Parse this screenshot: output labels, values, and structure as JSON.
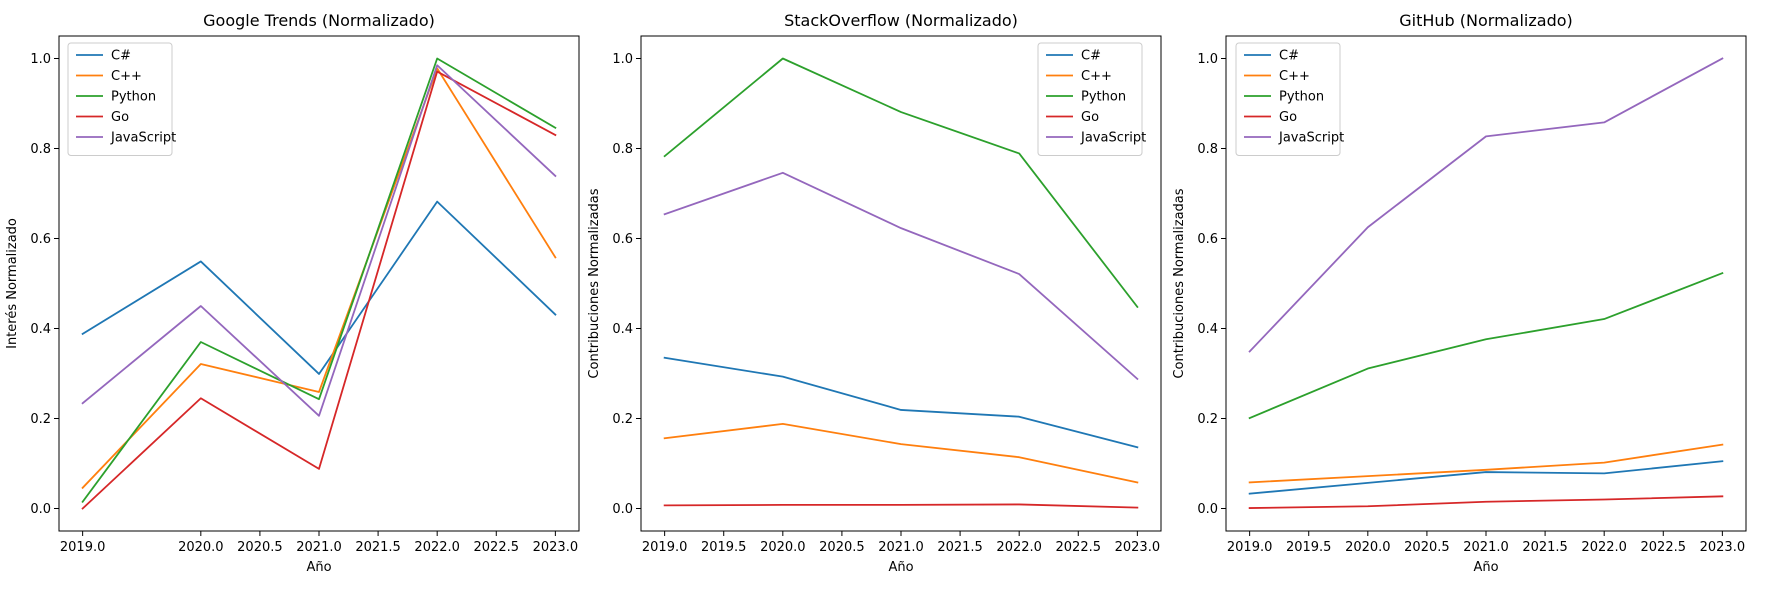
{
  "chart_data": [
    {
      "type": "line",
      "title": "Google Trends (Normalizado)",
      "xlabel": "Año",
      "ylabel": "Interés Normalizado",
      "x": [
        2019,
        2020,
        2021,
        2022,
        2023
      ],
      "xlim": [
        2018.8,
        2023.2
      ],
      "ylim": [
        -0.05,
        1.05
      ],
      "xticks": [
        "2019.0",
        "2020.0",
        "2020.5",
        "2021.0",
        "2021.5",
        "2022.0",
        "2022.5",
        "2023.0"
      ],
      "yticks": [
        "0.0",
        "0.2",
        "0.4",
        "0.6",
        "0.8",
        "1.0"
      ],
      "legend": "top-left",
      "grid": false,
      "series": [
        {
          "name": "C#",
          "color": "#1f77b4",
          "values": [
            0.388,
            0.549,
            0.299,
            0.682,
            0.431
          ]
        },
        {
          "name": "C++",
          "color": "#ff7f0e",
          "values": [
            0.046,
            0.321,
            0.259,
            0.978,
            0.558
          ]
        },
        {
          "name": "Python",
          "color": "#2ca02c",
          "values": [
            0.015,
            0.37,
            0.243,
            1.0,
            0.846
          ]
        },
        {
          "name": "Go",
          "color": "#d62728",
          "values": [
            0.0,
            0.245,
            0.088,
            0.971,
            0.83
          ]
        },
        {
          "name": "JavaScript",
          "color": "#9467bd",
          "values": [
            0.234,
            0.45,
            0.206,
            0.985,
            0.739
          ]
        }
      ]
    },
    {
      "type": "line",
      "title": "StackOverflow (Normalizado)",
      "xlabel": "Año",
      "ylabel": "Contribuciones Normalizadas",
      "x": [
        2019,
        2020,
        2021,
        2022,
        2023
      ],
      "xlim": [
        2018.8,
        2023.2
      ],
      "ylim": [
        -0.05,
        1.05
      ],
      "xticks": [
        "2019.0",
        "2019.5",
        "2020.0",
        "2020.5",
        "2021.0",
        "2021.5",
        "2022.0",
        "2022.5",
        "2023.0"
      ],
      "yticks": [
        "0.0",
        "0.2",
        "0.4",
        "0.6",
        "0.8",
        "1.0"
      ],
      "legend": "top-right",
      "grid": false,
      "series": [
        {
          "name": "C#",
          "color": "#1f77b4",
          "values": [
            0.335,
            0.293,
            0.219,
            0.204,
            0.136
          ]
        },
        {
          "name": "C++",
          "color": "#ff7f0e",
          "values": [
            0.156,
            0.188,
            0.143,
            0.114,
            0.058
          ]
        },
        {
          "name": "Python",
          "color": "#2ca02c",
          "values": [
            0.783,
            1.0,
            0.881,
            0.789,
            0.448
          ]
        },
        {
          "name": "Go",
          "color": "#d62728",
          "values": [
            0.007,
            0.008,
            0.008,
            0.009,
            0.002
          ]
        },
        {
          "name": "JavaScript",
          "color": "#9467bd",
          "values": [
            0.654,
            0.746,
            0.623,
            0.521,
            0.288
          ]
        }
      ]
    },
    {
      "type": "line",
      "title": "GitHub (Normalizado)",
      "xlabel": "Año",
      "ylabel": "Contribuciones Normalizadas",
      "x": [
        2019,
        2020,
        2021,
        2022,
        2023
      ],
      "xlim": [
        2018.8,
        2023.2
      ],
      "ylim": [
        -0.05,
        1.05
      ],
      "xticks": [
        "2019.0",
        "2019.5",
        "2020.0",
        "2020.5",
        "2021.0",
        "2021.5",
        "2022.0",
        "2022.5",
        "2023.0"
      ],
      "yticks": [
        "0.0",
        "0.2",
        "0.4",
        "0.6",
        "0.8",
        "1.0"
      ],
      "legend": "top-left",
      "grid": false,
      "series": [
        {
          "name": "C#",
          "color": "#1f77b4",
          "values": [
            0.033,
            0.057,
            0.081,
            0.078,
            0.105
          ]
        },
        {
          "name": "C++",
          "color": "#ff7f0e",
          "values": [
            0.058,
            0.072,
            0.086,
            0.102,
            0.142
          ]
        },
        {
          "name": "Python",
          "color": "#2ca02c",
          "values": [
            0.201,
            0.311,
            0.376,
            0.421,
            0.523
          ]
        },
        {
          "name": "Go",
          "color": "#d62728",
          "values": [
            0.001,
            0.005,
            0.015,
            0.02,
            0.027
          ]
        },
        {
          "name": "JavaScript",
          "color": "#9467bd",
          "values": [
            0.349,
            0.625,
            0.827,
            0.858,
            1.0
          ]
        }
      ]
    }
  ]
}
